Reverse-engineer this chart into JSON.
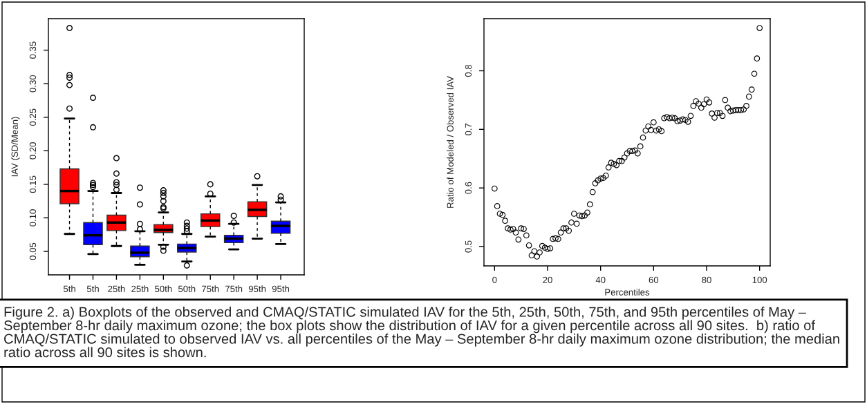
{
  "chart_data": [
    {
      "type": "box",
      "ylabel": "IAV (SD/Mean)",
      "categories": [
        "5th",
        "5th",
        "25th",
        "25th",
        "50th",
        "50th",
        "75th",
        "75th",
        "95th",
        "95th"
      ],
      "colors": [
        "#ff0000",
        "#0000ff",
        "#ff0000",
        "#0000ff",
        "#ff0000",
        "#0000ff",
        "#ff0000",
        "#0000ff",
        "#ff0000",
        "#0000ff"
      ],
      "boxes": [
        {
          "low": 0.076,
          "q1": 0.121,
          "median": 0.14,
          "q3": 0.173,
          "high": 0.248,
          "outliers": [
            0.383,
            0.313,
            0.309,
            0.298,
            0.263
          ]
        },
        {
          "low": 0.046,
          "q1": 0.06,
          "median": 0.074,
          "q3": 0.093,
          "high": 0.14,
          "outliers": [
            0.279,
            0.235,
            0.152,
            0.149,
            0.146
          ]
        },
        {
          "low": 0.058,
          "q1": 0.081,
          "median": 0.093,
          "q3": 0.104,
          "high": 0.137,
          "outliers": [
            0.189,
            0.166,
            0.153,
            0.149,
            0.142
          ]
        },
        {
          "low": 0.03,
          "q1": 0.042,
          "median": 0.048,
          "q3": 0.058,
          "high": 0.08,
          "outliers": [
            0.145,
            0.12,
            0.091,
            0.083
          ]
        },
        {
          "low": 0.06,
          "q1": 0.078,
          "median": 0.082,
          "q3": 0.09,
          "high": 0.108,
          "outliers": [
            0.141,
            0.137,
            0.132,
            0.125,
            0.116,
            0.114,
            0.057,
            0.051
          ]
        },
        {
          "low": 0.035,
          "q1": 0.049,
          "median": 0.055,
          "q3": 0.061,
          "high": 0.076,
          "outliers": [
            0.093,
            0.088,
            0.084,
            0.08,
            0.029
          ]
        },
        {
          "low": 0.072,
          "q1": 0.087,
          "median": 0.096,
          "q3": 0.106,
          "high": 0.132,
          "outliers": [
            0.15,
            0.136
          ]
        },
        {
          "low": 0.053,
          "q1": 0.063,
          "median": 0.069,
          "q3": 0.074,
          "high": 0.091,
          "outliers": [
            0.103,
            0.093
          ]
        },
        {
          "low": 0.069,
          "q1": 0.102,
          "median": 0.112,
          "q3": 0.124,
          "high": 0.149,
          "outliers": [
            0.162
          ]
        },
        {
          "low": 0.061,
          "q1": 0.077,
          "median": 0.088,
          "q3": 0.095,
          "high": 0.123,
          "outliers": [
            0.132,
            0.127
          ]
        }
      ],
      "ylim": [
        0.015,
        0.397
      ],
      "yticks": [
        0.05,
        {
          "value": 0.1,
          "label": "0.10"
        },
        0.15,
        {
          "value": 0.2,
          "label": "0.20"
        },
        0.25,
        {
          "value": 0.3,
          "label": "0.30"
        },
        0.35
      ],
      "grid": false,
      "legend": false,
      "annotations": [
        "Figure 2. a) Boxplots of the observed and CMAQ/STATIC simulated IAV for the 5th, 25th, 50th, 75th, and 95th percentiles of May – September 8-hr daily maximum ozone; the box plots show the distribution of IAV for a given percentile across all 90 sites.  b) ratio of CMAQ/STATIC simulated to observed IAV vs. all percentiles of the May – September 8-hr daily maximum ozone distribution; the median ratio across all 90 sites is shown."
      ]
    },
    {
      "type": "scatter",
      "xlabel": "Percentiles",
      "ylabel": "Ratio of Modeled / Observed IAV",
      "marker": "circle",
      "grid": false,
      "legend": false,
      "x": [
        0,
        1,
        2,
        3,
        4,
        5,
        6,
        7,
        8,
        9,
        10,
        11,
        12,
        13,
        14,
        15,
        16,
        17,
        18,
        19,
        20,
        21,
        22,
        23,
        24,
        25,
        26,
        27,
        28,
        29,
        30,
        31,
        32,
        33,
        34,
        35,
        36,
        37,
        38,
        39,
        40,
        41,
        42,
        43,
        44,
        45,
        46,
        47,
        48,
        49,
        50,
        51,
        52,
        53,
        54,
        55,
        56,
        57,
        58,
        59,
        60,
        61,
        62,
        63,
        64,
        65,
        66,
        67,
        68,
        69,
        70,
        71,
        72,
        73,
        74,
        75,
        76,
        77,
        78,
        79,
        80,
        81,
        82,
        83,
        84,
        85,
        86,
        87,
        88,
        89,
        90,
        91,
        92,
        93,
        94,
        95,
        96,
        97,
        98,
        99,
        100
      ],
      "series": [
        {
          "color": "#000000",
          "values": [
            0.599,
            0.569,
            0.556,
            0.554,
            0.544,
            0.531,
            0.529,
            0.53,
            0.524,
            0.512,
            0.531,
            0.53,
            0.519,
            0.502,
            0.485,
            0.492,
            0.483,
            0.49,
            0.501,
            0.498,
            0.496,
            0.497,
            0.513,
            0.514,
            0.513,
            0.524,
            0.531,
            0.531,
            0.527,
            0.541,
            0.556,
            0.539,
            0.553,
            0.552,
            0.553,
            0.558,
            0.572,
            0.593,
            0.608,
            0.613,
            0.616,
            0.617,
            0.621,
            0.635,
            0.643,
            0.641,
            0.639,
            0.646,
            0.646,
            0.652,
            0.659,
            0.663,
            0.663,
            0.664,
            0.659,
            0.671,
            0.686,
            0.698,
            0.705,
            0.699,
            0.712,
            0.698,
            0.7,
            0.697,
            0.719,
            0.721,
            0.719,
            0.72,
            0.719,
            0.714,
            0.715,
            0.717,
            0.716,
            0.713,
            0.723,
            0.74,
            0.748,
            0.744,
            0.737,
            0.743,
            0.751,
            0.746,
            0.727,
            0.72,
            0.728,
            0.728,
            0.723,
            0.75,
            0.737,
            0.731,
            0.732,
            0.733,
            0.733,
            0.733,
            0.734,
            0.74,
            0.756,
            0.768,
            0.795,
            0.821,
            0.873
          ]
        }
      ],
      "xlim": [
        -4,
        104
      ],
      "xticks": [
        0,
        20,
        40,
        60,
        80,
        100
      ],
      "ylim": [
        0.467,
        0.889
      ],
      "yticks": [
        0.5,
        0.6,
        0.7,
        0.8
      ]
    }
  ]
}
